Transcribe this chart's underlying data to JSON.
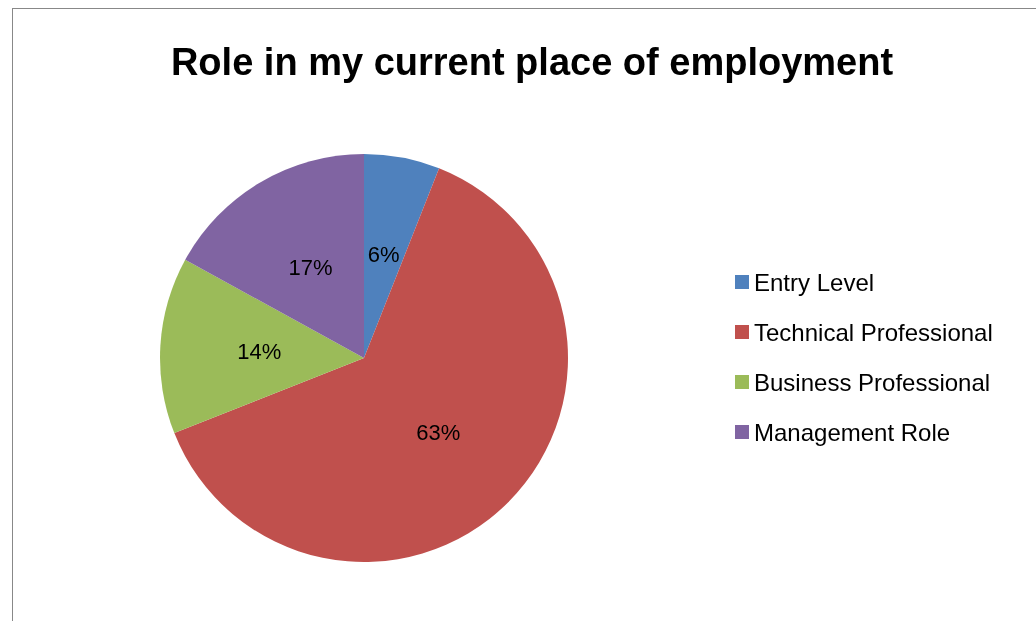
{
  "chart_data": {
    "type": "pie",
    "title": "Role in my current place of employment",
    "categories": [
      "Entry Level",
      "Technical Professional",
      "Business Professional",
      "Management Role"
    ],
    "values": [
      6,
      63,
      14,
      17
    ],
    "colors": [
      "#4f81bd",
      "#c0504d",
      "#9bbb59",
      "#8064a2"
    ],
    "value_labels": [
      "6%",
      "63%",
      "14%",
      "17%"
    ],
    "legend": "right"
  }
}
